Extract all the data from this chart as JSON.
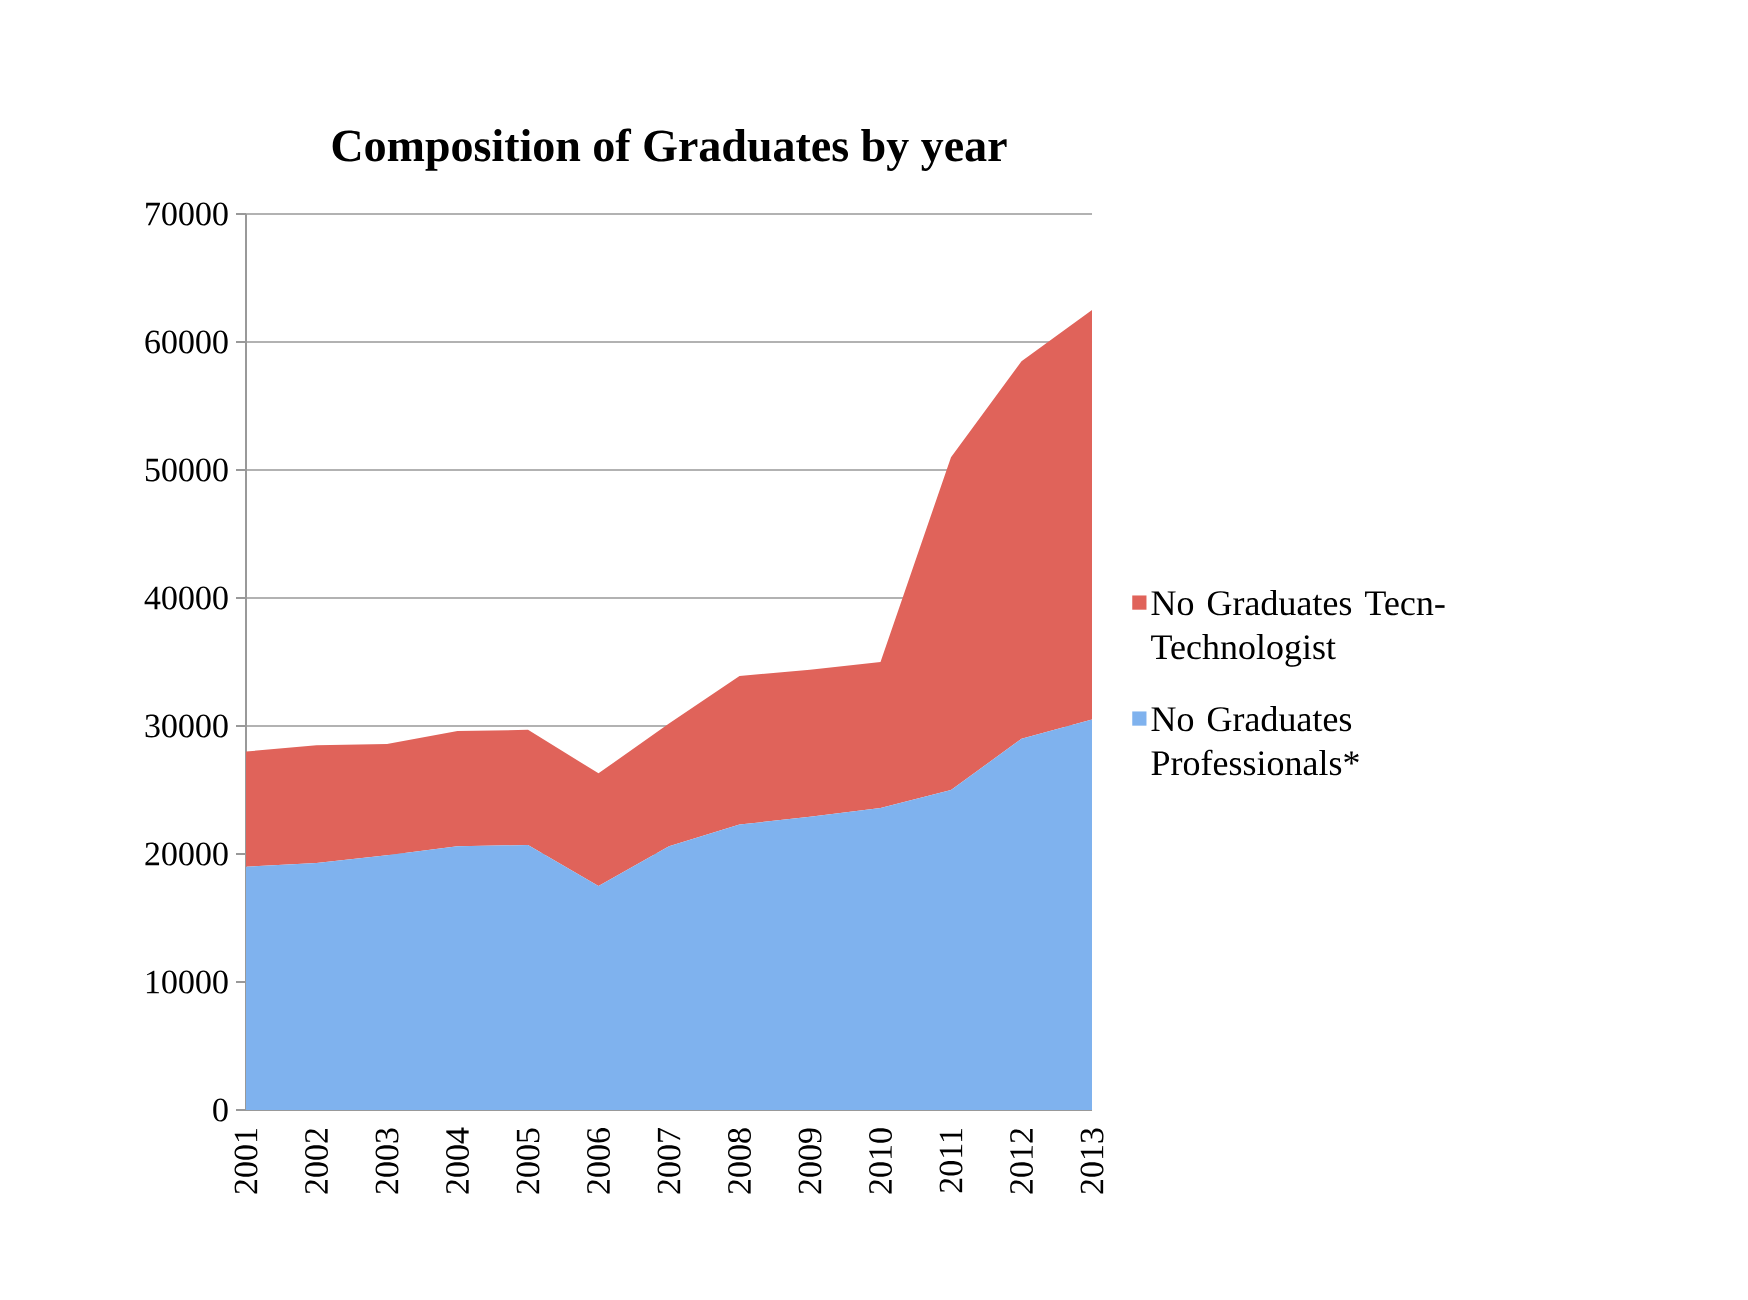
{
  "chart_data": {
    "type": "area",
    "title": "Composition of Graduates by year",
    "categories": [
      "2001",
      "2002",
      "2003",
      "2004",
      "2005",
      "2006",
      "2007",
      "2008",
      "2009",
      "2010",
      "2011",
      "2012",
      "2013"
    ],
    "stacked": true,
    "series": [
      {
        "name": "No Graduates Professionals*",
        "color": "#7fb2ee",
        "values": [
          19000,
          19300,
          19900,
          20600,
          20700,
          17500,
          20600,
          22300,
          22900,
          23600,
          25000,
          29000,
          30500
        ]
      },
      {
        "name": "No Graduates Tecn-Technologist",
        "color": "#e0635a",
        "values": [
          9000,
          9200,
          8700,
          9000,
          9000,
          8800,
          9600,
          11600,
          11500,
          11400,
          26000,
          29500,
          32000
        ]
      }
    ],
    "ylim": [
      0,
      70000
    ],
    "yticks": [
      0,
      10000,
      20000,
      30000,
      40000,
      50000,
      60000,
      70000
    ],
    "grid": "y",
    "legend": "right"
  }
}
